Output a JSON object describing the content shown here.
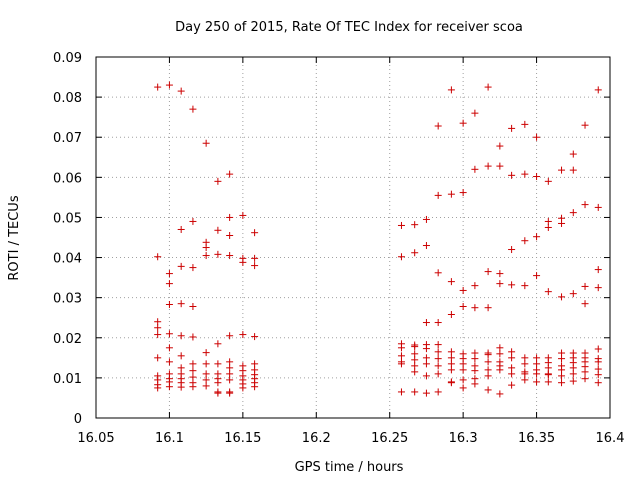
{
  "chart_data": {
    "type": "scatter",
    "title": "Day 250 of 2015, Rate Of TEC Index for receiver scoa",
    "xlabel": "GPS time / hours",
    "ylabel": "ROTI / TECUs",
    "xlim": [
      16.05,
      16.4
    ],
    "ylim": [
      0,
      0.09
    ],
    "x_ticks": [
      "16.05",
      "16.1",
      "16.15",
      "16.2",
      "16.25",
      "16.3",
      "16.35",
      "16.4"
    ],
    "y_ticks": [
      "0",
      "0.01",
      "0.02",
      "0.03",
      "0.04",
      "0.05",
      "0.06",
      "0.07",
      "0.08",
      "0.09"
    ],
    "grid": true,
    "marker": "+",
    "color": "#cc0000",
    "points": [
      [
        16.092,
        0.0825
      ],
      [
        16.092,
        0.0402
      ],
      [
        16.092,
        0.024
      ],
      [
        16.092,
        0.0225
      ],
      [
        16.092,
        0.0208
      ],
      [
        16.092,
        0.015
      ],
      [
        16.092,
        0.0105
      ],
      [
        16.092,
        0.0095
      ],
      [
        16.092,
        0.0083
      ],
      [
        16.092,
        0.0075
      ],
      [
        16.1,
        0.083
      ],
      [
        16.1,
        0.036
      ],
      [
        16.1,
        0.0335
      ],
      [
        16.1,
        0.0283
      ],
      [
        16.1,
        0.021
      ],
      [
        16.1,
        0.0175
      ],
      [
        16.1,
        0.014
      ],
      [
        16.1,
        0.011
      ],
      [
        16.1,
        0.0098
      ],
      [
        16.1,
        0.009
      ],
      [
        16.1,
        0.0078
      ],
      [
        16.108,
        0.0815
      ],
      [
        16.108,
        0.047
      ],
      [
        16.108,
        0.0378
      ],
      [
        16.108,
        0.0285
      ],
      [
        16.108,
        0.0205
      ],
      [
        16.108,
        0.0155
      ],
      [
        16.108,
        0.0125
      ],
      [
        16.108,
        0.011
      ],
      [
        16.108,
        0.0098
      ],
      [
        16.108,
        0.0088
      ],
      [
        16.108,
        0.0077
      ],
      [
        16.116,
        0.077
      ],
      [
        16.116,
        0.049
      ],
      [
        16.116,
        0.0375
      ],
      [
        16.116,
        0.0278
      ],
      [
        16.116,
        0.0202
      ],
      [
        16.116,
        0.0135
      ],
      [
        16.116,
        0.0118
      ],
      [
        16.116,
        0.0102
      ],
      [
        16.116,
        0.0088
      ],
      [
        16.116,
        0.0078
      ],
      [
        16.125,
        0.0685
      ],
      [
        16.125,
        0.0438
      ],
      [
        16.125,
        0.0425
      ],
      [
        16.125,
        0.0405
      ],
      [
        16.125,
        0.0163
      ],
      [
        16.125,
        0.0135
      ],
      [
        16.125,
        0.011
      ],
      [
        16.125,
        0.0095
      ],
      [
        16.125,
        0.008
      ],
      [
        16.133,
        0.059
      ],
      [
        16.133,
        0.0468
      ],
      [
        16.133,
        0.0408
      ],
      [
        16.133,
        0.0185
      ],
      [
        16.133,
        0.0135
      ],
      [
        16.133,
        0.011
      ],
      [
        16.133,
        0.0098
      ],
      [
        16.133,
        0.0088
      ],
      [
        16.133,
        0.0065
      ],
      [
        16.133,
        0.0062
      ],
      [
        16.141,
        0.0608
      ],
      [
        16.141,
        0.05
      ],
      [
        16.141,
        0.0455
      ],
      [
        16.141,
        0.0405
      ],
      [
        16.141,
        0.0205
      ],
      [
        16.141,
        0.014
      ],
      [
        16.141,
        0.0125
      ],
      [
        16.141,
        0.011
      ],
      [
        16.141,
        0.0095
      ],
      [
        16.141,
        0.0065
      ],
      [
        16.141,
        0.0062
      ],
      [
        16.15,
        0.0505
      ],
      [
        16.15,
        0.0398
      ],
      [
        16.15,
        0.0388
      ],
      [
        16.15,
        0.0208
      ],
      [
        16.15,
        0.013
      ],
      [
        16.15,
        0.0118
      ],
      [
        16.15,
        0.0105
      ],
      [
        16.15,
        0.0095
      ],
      [
        16.15,
        0.0085
      ],
      [
        16.15,
        0.0075
      ],
      [
        16.158,
        0.0462
      ],
      [
        16.158,
        0.0398
      ],
      [
        16.158,
        0.038
      ],
      [
        16.158,
        0.0203
      ],
      [
        16.158,
        0.0135
      ],
      [
        16.158,
        0.012
      ],
      [
        16.158,
        0.0108
      ],
      [
        16.158,
        0.0098
      ],
      [
        16.158,
        0.0088
      ],
      [
        16.158,
        0.0078
      ],
      [
        16.258,
        0.048
      ],
      [
        16.258,
        0.0402
      ],
      [
        16.258,
        0.0185
      ],
      [
        16.258,
        0.0175
      ],
      [
        16.258,
        0.0155
      ],
      [
        16.258,
        0.014
      ],
      [
        16.258,
        0.0135
      ],
      [
        16.258,
        0.0065
      ],
      [
        16.267,
        0.0482
      ],
      [
        16.267,
        0.0412
      ],
      [
        16.267,
        0.0182
      ],
      [
        16.267,
        0.0178
      ],
      [
        16.267,
        0.016
      ],
      [
        16.267,
        0.0145
      ],
      [
        16.267,
        0.013
      ],
      [
        16.267,
        0.0115
      ],
      [
        16.267,
        0.0065
      ],
      [
        16.275,
        0.0495
      ],
      [
        16.275,
        0.043
      ],
      [
        16.275,
        0.0238
      ],
      [
        16.275,
        0.0183
      ],
      [
        16.275,
        0.0173
      ],
      [
        16.275,
        0.015
      ],
      [
        16.275,
        0.0135
      ],
      [
        16.275,
        0.0105
      ],
      [
        16.275,
        0.0062
      ],
      [
        16.283,
        0.0728
      ],
      [
        16.283,
        0.0555
      ],
      [
        16.283,
        0.0362
      ],
      [
        16.283,
        0.0238
      ],
      [
        16.283,
        0.0183
      ],
      [
        16.283,
        0.0165
      ],
      [
        16.283,
        0.0148
      ],
      [
        16.283,
        0.013
      ],
      [
        16.283,
        0.011
      ],
      [
        16.283,
        0.0065
      ],
      [
        16.292,
        0.0818
      ],
      [
        16.292,
        0.0558
      ],
      [
        16.292,
        0.034
      ],
      [
        16.292,
        0.0258
      ],
      [
        16.292,
        0.0165
      ],
      [
        16.292,
        0.015
      ],
      [
        16.292,
        0.0135
      ],
      [
        16.292,
        0.012
      ],
      [
        16.292,
        0.009
      ],
      [
        16.292,
        0.0088
      ],
      [
        16.3,
        0.0735
      ],
      [
        16.3,
        0.0562
      ],
      [
        16.3,
        0.0318
      ],
      [
        16.3,
        0.0278
      ],
      [
        16.3,
        0.016
      ],
      [
        16.3,
        0.0148
      ],
      [
        16.3,
        0.0135
      ],
      [
        16.3,
        0.012
      ],
      [
        16.3,
        0.0095
      ],
      [
        16.3,
        0.0075
      ],
      [
        16.308,
        0.076
      ],
      [
        16.308,
        0.062
      ],
      [
        16.308,
        0.033
      ],
      [
        16.308,
        0.0275
      ],
      [
        16.308,
        0.0162
      ],
      [
        16.308,
        0.0148
      ],
      [
        16.308,
        0.013
      ],
      [
        16.308,
        0.0118
      ],
      [
        16.308,
        0.0098
      ],
      [
        16.308,
        0.0085
      ],
      [
        16.317,
        0.0825
      ],
      [
        16.317,
        0.0628
      ],
      [
        16.317,
        0.0365
      ],
      [
        16.317,
        0.0275
      ],
      [
        16.317,
        0.0162
      ],
      [
        16.317,
        0.0158
      ],
      [
        16.317,
        0.014
      ],
      [
        16.317,
        0.012
      ],
      [
        16.317,
        0.0105
      ],
      [
        16.317,
        0.007
      ],
      [
        16.325,
        0.0678
      ],
      [
        16.325,
        0.0628
      ],
      [
        16.325,
        0.036
      ],
      [
        16.325,
        0.0335
      ],
      [
        16.325,
        0.0175
      ],
      [
        16.325,
        0.016
      ],
      [
        16.325,
        0.014
      ],
      [
        16.325,
        0.013
      ],
      [
        16.325,
        0.012
      ],
      [
        16.325,
        0.006
      ],
      [
        16.333,
        0.0722
      ],
      [
        16.333,
        0.0605
      ],
      [
        16.333,
        0.042
      ],
      [
        16.333,
        0.0332
      ],
      [
        16.333,
        0.0165
      ],
      [
        16.333,
        0.015
      ],
      [
        16.333,
        0.0125
      ],
      [
        16.333,
        0.011
      ],
      [
        16.333,
        0.0082
      ],
      [
        16.342,
        0.0732
      ],
      [
        16.342,
        0.0608
      ],
      [
        16.342,
        0.0442
      ],
      [
        16.342,
        0.033
      ],
      [
        16.342,
        0.015
      ],
      [
        16.342,
        0.0135
      ],
      [
        16.342,
        0.0115
      ],
      [
        16.342,
        0.011
      ],
      [
        16.342,
        0.0095
      ],
      [
        16.35,
        0.07
      ],
      [
        16.35,
        0.0602
      ],
      [
        16.35,
        0.0452
      ],
      [
        16.35,
        0.0355
      ],
      [
        16.35,
        0.015
      ],
      [
        16.35,
        0.0135
      ],
      [
        16.35,
        0.012
      ],
      [
        16.35,
        0.011
      ],
      [
        16.35,
        0.009
      ],
      [
        16.358,
        0.059
      ],
      [
        16.358,
        0.049
      ],
      [
        16.358,
        0.0475
      ],
      [
        16.358,
        0.0315
      ],
      [
        16.358,
        0.015
      ],
      [
        16.358,
        0.0138
      ],
      [
        16.358,
        0.0125
      ],
      [
        16.358,
        0.011
      ],
      [
        16.358,
        0.0108
      ],
      [
        16.358,
        0.009
      ],
      [
        16.367,
        0.0618
      ],
      [
        16.367,
        0.0498
      ],
      [
        16.367,
        0.0485
      ],
      [
        16.367,
        0.0302
      ],
      [
        16.367,
        0.0162
      ],
      [
        16.367,
        0.0148
      ],
      [
        16.367,
        0.013
      ],
      [
        16.367,
        0.012
      ],
      [
        16.367,
        0.0105
      ],
      [
        16.367,
        0.0088
      ],
      [
        16.375,
        0.0658
      ],
      [
        16.375,
        0.0618
      ],
      [
        16.375,
        0.0512
      ],
      [
        16.375,
        0.031
      ],
      [
        16.375,
        0.0162
      ],
      [
        16.375,
        0.015
      ],
      [
        16.375,
        0.0138
      ],
      [
        16.375,
        0.0125
      ],
      [
        16.375,
        0.011
      ],
      [
        16.375,
        0.0092
      ],
      [
        16.383,
        0.073
      ],
      [
        16.383,
        0.0532
      ],
      [
        16.383,
        0.0328
      ],
      [
        16.383,
        0.0285
      ],
      [
        16.383,
        0.0162
      ],
      [
        16.383,
        0.015
      ],
      [
        16.383,
        0.014
      ],
      [
        16.383,
        0.0128
      ],
      [
        16.383,
        0.0115
      ],
      [
        16.383,
        0.0098
      ],
      [
        16.392,
        0.0818
      ],
      [
        16.392,
        0.0525
      ],
      [
        16.392,
        0.037
      ],
      [
        16.392,
        0.0325
      ],
      [
        16.392,
        0.0172
      ],
      [
        16.392,
        0.0148
      ],
      [
        16.392,
        0.014
      ],
      [
        16.392,
        0.0122
      ],
      [
        16.392,
        0.0108
      ],
      [
        16.392,
        0.0088
      ]
    ]
  }
}
